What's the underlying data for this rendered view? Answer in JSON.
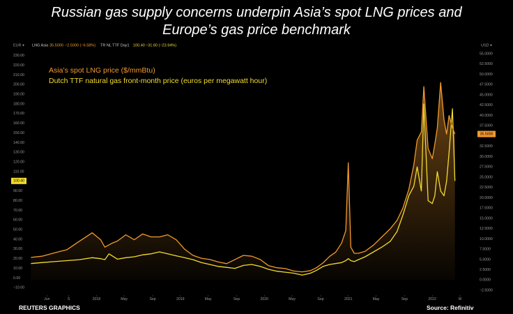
{
  "header": {
    "title_line1": "Russian gas supply concerns underpin Asia’s spot LNG prices and",
    "title_line2": "Europe’s gas price benchmark"
  },
  "footer": {
    "credit": "REUTERS GRAPHICS",
    "source": "Source: Refinitiv"
  },
  "toolbar": {
    "left_unit": "EUR",
    "right_unit": "USD",
    "s1_name": "LNG Asia",
    "s1_value": "35.5000",
    "s1_change": "−2.5000 (−6.58%)",
    "s2_name": "TR NL TTF Day1",
    "s2_value": "100.40",
    "s2_change": "−31.60 (−23.94%)"
  },
  "colors": {
    "lng": "#f29a2e",
    "ttf": "#f2dd2e",
    "background": "#000000",
    "axis_text": "#9a9a9a"
  },
  "chart_data": {
    "type": "line",
    "legend": {
      "lng_label": "Asia’s spot LNG price ($/mmBtu)",
      "ttf_label": "Dutch TTF natural gas front-month price (euros per megawatt hour)",
      "placement": "top-left"
    },
    "x_tick_labels": [
      "Jun",
      "S",
      "2018",
      "May",
      "Sep",
      "2019",
      "May",
      "Sep",
      "2020",
      "May",
      "Sep",
      "2021",
      "May",
      "Sep",
      "2022",
      "M"
    ],
    "x_ticks": [
      2017.41,
      2017.67,
      2018.0,
      2018.33,
      2018.67,
      2019.0,
      2019.33,
      2019.67,
      2020.0,
      2020.33,
      2020.67,
      2021.0,
      2021.33,
      2021.67,
      2022.0,
      2022.33
    ],
    "xlim": [
      2017.2,
      2022.48
    ],
    "left_axis": {
      "unit": "EUR",
      "ticks": [
        "−10.00",
        "0.00",
        "10.00",
        "20.00",
        "30.00",
        "40.00",
        "50.00",
        "60.00",
        "70.00",
        "80.00",
        "90.00",
        "100.00",
        "110.00",
        "120.00",
        "130.00",
        "140.00",
        "150.00",
        "160.00",
        "170.00",
        "180.00",
        "190.00",
        "200.00",
        "210.00",
        "220.00",
        "230.00"
      ],
      "tick_values": [
        -10,
        0,
        10,
        20,
        30,
        40,
        50,
        60,
        70,
        80,
        90,
        100,
        110,
        120,
        130,
        140,
        150,
        160,
        170,
        180,
        190,
        200,
        210,
        220,
        230
      ],
      "ylim": [
        -17,
        237
      ],
      "last_value": "100.40"
    },
    "right_axis": {
      "unit": "USD",
      "ticks": [
        "−2.5000",
        "0.0000",
        "2.5000",
        "5.0000",
        "7.5000",
        "10.0000",
        "12.5000",
        "15.0000",
        "17.5000",
        "20.0000",
        "22.5000",
        "25.0000",
        "27.5000",
        "30.0000",
        "32.5000",
        "35.0000",
        "37.5000",
        "40.0000",
        "42.5000",
        "45.0000",
        "47.5000",
        "50.0000",
        "52.5000",
        "55.0000"
      ],
      "tick_values": [
        -2.5,
        0,
        2.5,
        5,
        7.5,
        10,
        12.5,
        15,
        17.5,
        20,
        22.5,
        25,
        27.5,
        30,
        32.5,
        35,
        37.5,
        40,
        42.5,
        45,
        47.5,
        50,
        52.5,
        55
      ],
      "ylim": [
        -3.5,
        56.2
      ],
      "last_value": "35.5000"
    },
    "series": [
      {
        "name": "LNG Asia",
        "axis": "right",
        "x": [
          2017.22,
          2017.35,
          2017.5,
          2017.65,
          2017.8,
          2017.95,
          2018.05,
          2018.1,
          2018.18,
          2018.25,
          2018.35,
          2018.45,
          2018.55,
          2018.65,
          2018.75,
          2018.85,
          2018.95,
          2019.05,
          2019.15,
          2019.25,
          2019.35,
          2019.45,
          2019.55,
          2019.65,
          2019.75,
          2019.85,
          2019.95,
          2020.05,
          2020.15,
          2020.25,
          2020.35,
          2020.45,
          2020.55,
          2020.62,
          2020.7,
          2020.78,
          2020.85,
          2020.92,
          2020.97,
          2021.0,
          2021.03,
          2021.07,
          2021.12,
          2021.2,
          2021.3,
          2021.4,
          2021.5,
          2021.58,
          2021.65,
          2021.72,
          2021.78,
          2021.82,
          2021.87,
          2021.9,
          2021.95,
          2022.0,
          2022.03,
          2022.06,
          2022.1,
          2022.14,
          2022.17,
          2022.2,
          2022.24,
          2022.27
        ],
        "values": [
          5.5,
          5.8,
          6.6,
          7.4,
          9.5,
          11.5,
          9.8,
          8.0,
          8.9,
          9.5,
          11.0,
          9.8,
          11.2,
          10.5,
          10.5,
          11.0,
          9.8,
          7.5,
          6.0,
          5.3,
          5.0,
          4.4,
          4.0,
          5.0,
          6.0,
          5.8,
          5.0,
          3.5,
          3.0,
          2.8,
          2.2,
          2.0,
          2.3,
          3.0,
          4.2,
          5.8,
          6.8,
          9.0,
          12.0,
          28.5,
          8.0,
          6.5,
          6.5,
          7.0,
          8.5,
          10.5,
          12.5,
          14.5,
          17.5,
          22.0,
          28.0,
          34.0,
          36.0,
          47.0,
          32.0,
          29.5,
          33.0,
          37.0,
          48.0,
          39.0,
          35.5,
          40.0,
          37.0,
          35.5
        ]
      },
      {
        "name": "TR NL TTF Day1",
        "axis": "left",
        "x": [
          2017.22,
          2017.35,
          2017.5,
          2017.65,
          2017.8,
          2017.95,
          2018.05,
          2018.1,
          2018.15,
          2018.25,
          2018.35,
          2018.45,
          2018.55,
          2018.65,
          2018.75,
          2018.85,
          2018.95,
          2019.05,
          2019.15,
          2019.25,
          2019.35,
          2019.45,
          2019.55,
          2019.65,
          2019.75,
          2019.85,
          2019.95,
          2020.05,
          2020.15,
          2020.25,
          2020.35,
          2020.45,
          2020.55,
          2020.62,
          2020.7,
          2020.78,
          2020.85,
          2020.92,
          2020.97,
          2021.0,
          2021.03,
          2021.07,
          2021.12,
          2021.2,
          2021.3,
          2021.4,
          2021.5,
          2021.58,
          2021.65,
          2021.72,
          2021.78,
          2021.82,
          2021.87,
          2021.9,
          2021.95,
          2022.0,
          2022.03,
          2022.06,
          2022.1,
          2022.14,
          2022.17,
          2022.2,
          2022.24,
          2022.27
        ],
        "values": [
          15,
          16,
          17,
          18,
          19,
          21,
          20,
          19,
          25,
          19.5,
          21,
          22,
          24,
          25,
          27,
          25,
          23,
          21,
          19,
          16,
          14,
          12,
          11,
          10,
          13,
          14,
          12,
          9,
          7,
          6,
          5,
          3,
          5,
          8,
          12,
          14,
          15,
          16,
          18,
          20,
          18,
          17,
          19,
          22,
          27,
          32,
          38,
          48,
          65,
          85,
          95,
          115,
          90,
          180,
          80,
          77,
          85,
          110,
          90,
          85,
          100,
          130,
          175,
          100.4
        ]
      }
    ]
  }
}
